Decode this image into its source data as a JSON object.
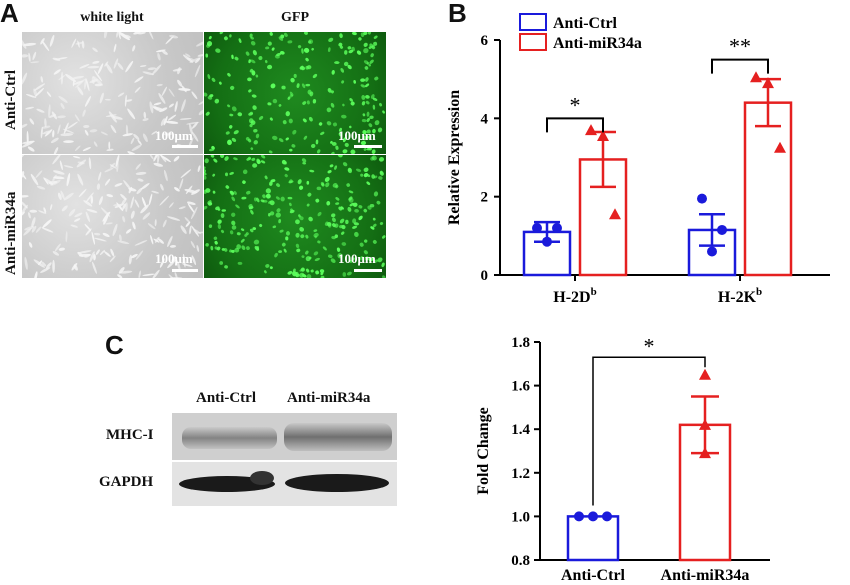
{
  "panel_a": {
    "letter": "A",
    "column_headers": [
      "white light",
      "GFP"
    ],
    "row_labels": [
      "Anti-Ctrl",
      "Anti-miR34a"
    ],
    "scale_label": "100μm",
    "colors": {
      "gfp_bg": "#136b13",
      "gfp_cell": "#5cff5c",
      "bf_bg": "#c8c8c8"
    }
  },
  "panel_b": {
    "letter": "B",
    "ylabel": "Relative Expression",
    "legend": [
      "Anti-Ctrl",
      "Anti-miR34a"
    ],
    "categories": [
      "H-2D",
      "H-2K"
    ],
    "category_superscript": "b",
    "significance": [
      "*",
      "**"
    ]
  },
  "panel_c": {
    "letter": "C",
    "blot_headers": [
      "Anti-Ctrl",
      "Anti-miR34a"
    ],
    "blot_rows": [
      "MHC-I",
      "GAPDH"
    ],
    "ylabel": "Fold Change",
    "categories": [
      "Anti-Ctrl",
      "Anti-miR34a"
    ],
    "significance": "*"
  },
  "colors": {
    "ctrl": "#1a1adb",
    "mir": "#e52020"
  },
  "chart_data": [
    {
      "type": "bar",
      "panel": "B",
      "ylabel": "Relative Expression",
      "ylim": [
        0,
        6
      ],
      "yticks": [
        0,
        2,
        4,
        6
      ],
      "categories": [
        "H-2Db",
        "H-2Kb"
      ],
      "series": [
        {
          "name": "Anti-Ctrl",
          "values": [
            1.1,
            1.15
          ],
          "sem": [
            0.25,
            0.4
          ],
          "points": [
            [
              1.2,
              0.85,
              1.2
            ],
            [
              1.95,
              0.6,
              1.15
            ]
          ]
        },
        {
          "name": "Anti-miR34a",
          "values": [
            2.95,
            4.4
          ],
          "sem": [
            0.7,
            0.6
          ],
          "points": [
            [
              3.7,
              3.55,
              1.55
            ],
            [
              5.05,
              4.9,
              3.25
            ]
          ]
        }
      ],
      "significance": [
        "*",
        "**"
      ],
      "legend_position": "top"
    },
    {
      "type": "bar",
      "panel": "C",
      "ylabel": "Fold Change",
      "ylim": [
        0.8,
        1.8
      ],
      "yticks": [
        0.8,
        1.0,
        1.2,
        1.4,
        1.6,
        1.8
      ],
      "categories": [
        "Anti-Ctrl",
        "Anti-miR34a"
      ],
      "values": [
        1.0,
        1.42
      ],
      "sem": [
        0,
        0.13
      ],
      "points": [
        [
          1.0,
          1.0,
          1.0
        ],
        [
          1.65,
          1.42,
          1.29
        ]
      ],
      "significance": "*"
    }
  ]
}
